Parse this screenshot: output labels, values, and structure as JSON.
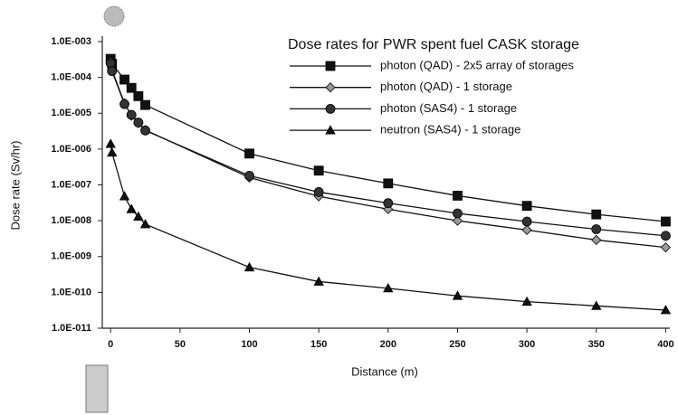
{
  "chart_data": {
    "type": "line",
    "title": "Dose rates for PWR spent fuel CASK storage",
    "x_label": "Distance (m)",
    "y_label": "Dose rate (Sv/hr)",
    "log_y": true,
    "grid": false,
    "legend_position": "top-right",
    "x": [
      0,
      1,
      10,
      15,
      20,
      25,
      100,
      150,
      200,
      250,
      300,
      350,
      400
    ],
    "xlim": [
      -6,
      403
    ],
    "xticks": [
      0,
      50,
      100,
      150,
      200,
      250,
      300,
      350,
      400
    ],
    "ylim": [
      1e-11,
      0.001
    ],
    "yticks": [
      {
        "value": 1e-11,
        "label": "1.0E-011"
      },
      {
        "value": 1e-10,
        "label": "1.0E-010"
      },
      {
        "value": 1e-09,
        "label": "1.0E-009"
      },
      {
        "value": 1e-08,
        "label": "1.0E-008"
      },
      {
        "value": 1e-07,
        "label": "1.0E-007"
      },
      {
        "value": 1e-06,
        "label": "1.0E-006"
      },
      {
        "value": 1e-05,
        "label": "1.0E-005"
      },
      {
        "value": 0.0001,
        "label": "1.0E-004"
      },
      {
        "value": 0.001,
        "label": "1.0E-003"
      }
    ],
    "series": [
      {
        "name": "photon (QAD) - 2x5 array of storages",
        "color": "#111111",
        "marker": "square",
        "values": [
          0.00033,
          0.00024,
          8.7e-05,
          5.1e-05,
          3e-05,
          1.7e-05,
          7.5e-07,
          2.5e-07,
          1.1e-07,
          5e-08,
          2.6e-08,
          1.5e-08,
          9.5e-09
        ]
      },
      {
        "name": "photon (QAD) - 1 storage",
        "color": "#999999",
        "marker": "diamond",
        "values": [
          0.00028,
          0.00016,
          1.9e-05,
          8.5e-06,
          5.3e-06,
          3.4e-06,
          1.6e-07,
          4.8e-08,
          2.1e-08,
          1e-08,
          5.5e-09,
          2.9e-09,
          1.8e-09
        ]
      },
      {
        "name": "photon (SAS4) - 1 storage",
        "color": "#333333",
        "marker": "circle",
        "values": [
          0.00025,
          0.00015,
          1.8e-05,
          9e-06,
          5.5e-06,
          3.3e-06,
          1.8e-07,
          6.3e-08,
          3.1e-08,
          1.6e-08,
          9.5e-09,
          5.8e-09,
          3.8e-09
        ]
      },
      {
        "name": "neutron (SAS4) - 1 storage",
        "color": "#111111",
        "marker": "triangle",
        "values": [
          1.4e-06,
          8e-07,
          4.8e-08,
          2.1e-08,
          1.3e-08,
          8e-09,
          5e-10,
          2e-10,
          1.3e-10,
          8e-11,
          5.5e-11,
          4.2e-11,
          3.2e-11
        ]
      }
    ]
  }
}
